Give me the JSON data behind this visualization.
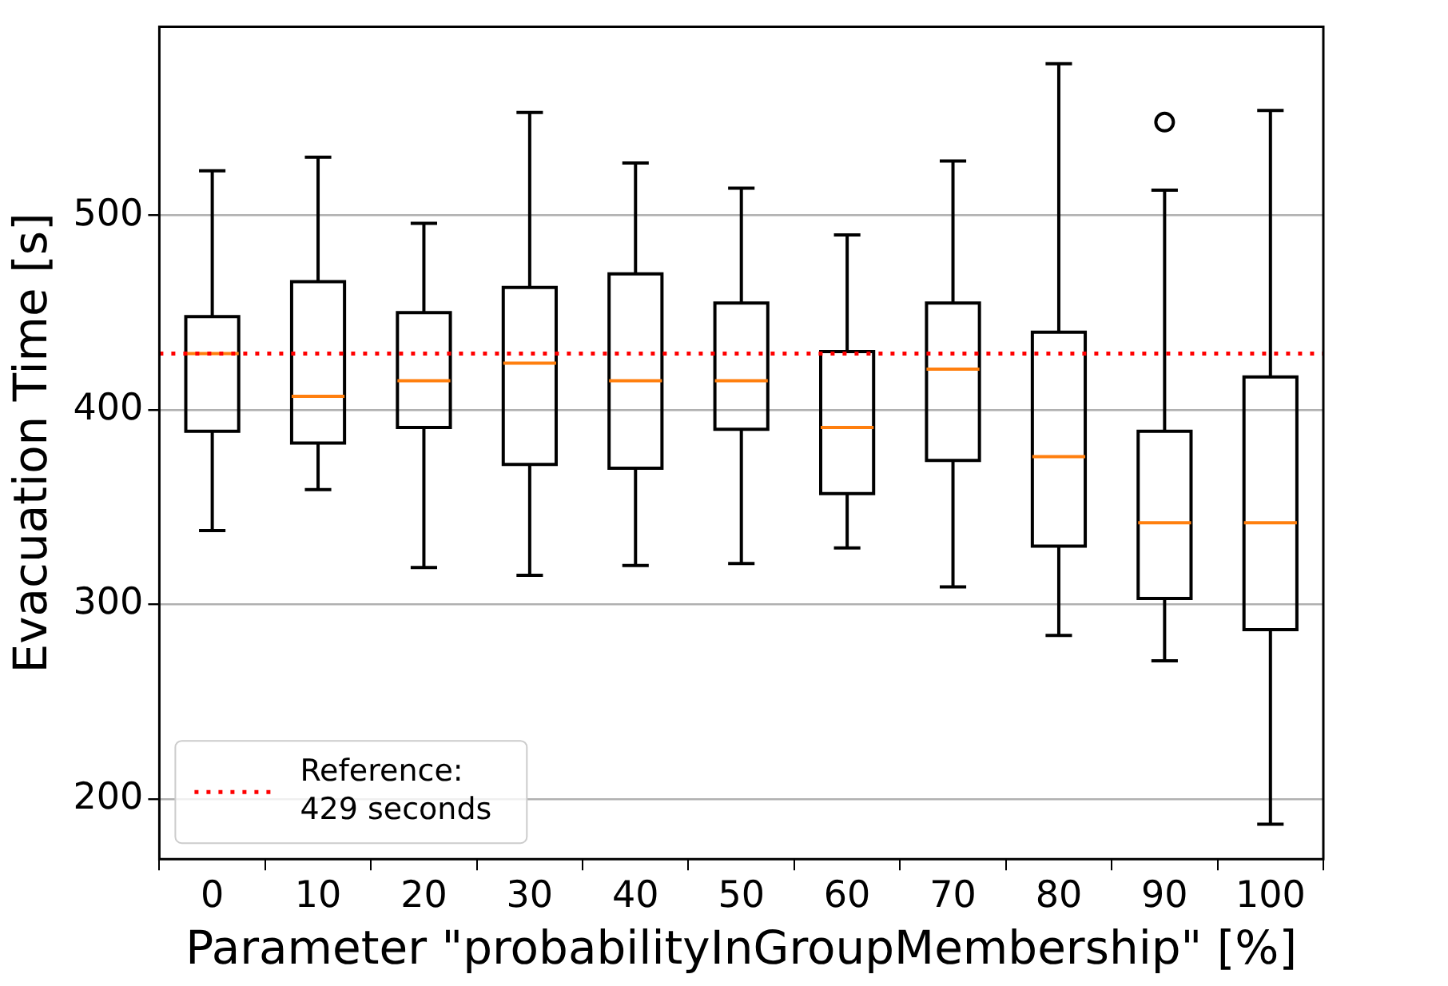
{
  "chart_data": {
    "type": "box",
    "xlabel": "Parameter \"probabilityInGroupMembership\" [%]",
    "ylabel": "Evacuation Time [s]",
    "categories": [
      "0",
      "10",
      "20",
      "30",
      "40",
      "50",
      "60",
      "70",
      "80",
      "90",
      "100"
    ],
    "boxes": [
      {
        "low": 338,
        "q1": 389,
        "median": 429,
        "q3": 448,
        "high": 523
      },
      {
        "low": 359,
        "q1": 383,
        "median": 407,
        "q3": 466,
        "high": 530
      },
      {
        "low": 319,
        "q1": 391,
        "median": 415,
        "q3": 450,
        "high": 496
      },
      {
        "low": 315,
        "q1": 372,
        "median": 424,
        "q3": 463,
        "high": 553
      },
      {
        "low": 320,
        "q1": 370,
        "median": 415,
        "q3": 470,
        "high": 527
      },
      {
        "low": 321,
        "q1": 390,
        "median": 415,
        "q3": 455,
        "high": 514
      },
      {
        "low": 329,
        "q1": 357,
        "median": 391,
        "q3": 430,
        "high": 490
      },
      {
        "low": 309,
        "q1": 374,
        "median": 421,
        "q3": 455,
        "high": 528
      },
      {
        "low": 284,
        "q1": 330,
        "median": 376,
        "q3": 440,
        "high": 578
      },
      {
        "low": 271,
        "q1": 303,
        "median": 342,
        "q3": 389,
        "high": 513,
        "outliers": [
          548
        ]
      },
      {
        "low": 187,
        "q1": 287,
        "median": 342,
        "q3": 417,
        "high": 554
      }
    ],
    "ylim": [
      169,
      597
    ],
    "yticks": [
      200,
      300,
      400,
      500
    ],
    "grid": "y",
    "legend": "bottom left",
    "ref_lines": [
      {
        "axis": "y",
        "value": 429,
        "label": "Reference:\n429 seconds",
        "color": "#ff0000",
        "line_style": "dotted"
      }
    ]
  }
}
